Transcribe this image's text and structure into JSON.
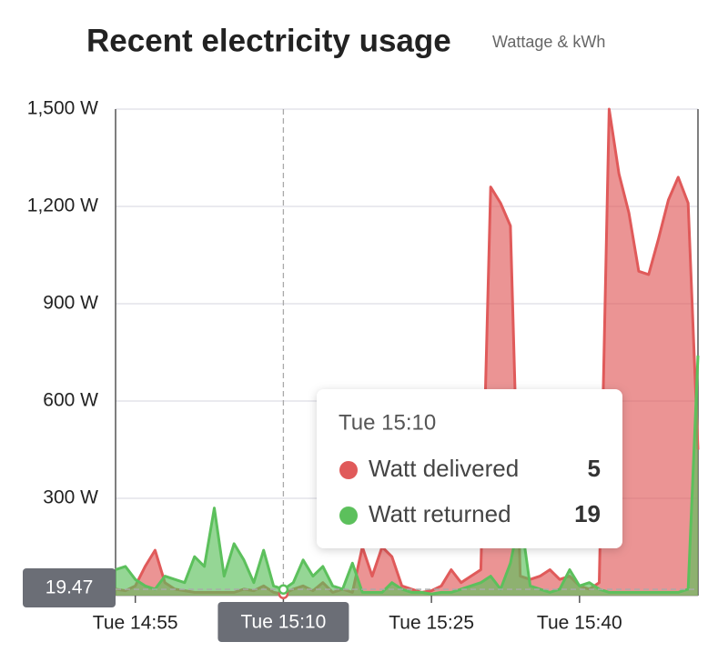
{
  "chart_data": {
    "type": "area",
    "title": "Recent electricity usage",
    "subtitle": "Wattage & kWh",
    "x": [
      "Tue 14:53",
      "Tue 14:54",
      "Tue 14:55",
      "Tue 14:56",
      "Tue 14:57",
      "Tue 14:58",
      "Tue 14:59",
      "Tue 15:00",
      "Tue 15:01",
      "Tue 15:02",
      "Tue 15:03",
      "Tue 15:04",
      "Tue 15:05",
      "Tue 15:06",
      "Tue 15:07",
      "Tue 15:08",
      "Tue 15:09",
      "Tue 15:10",
      "Tue 15:11",
      "Tue 15:12",
      "Tue 15:13",
      "Tue 15:14",
      "Tue 15:15",
      "Tue 15:16",
      "Tue 15:17",
      "Tue 15:18",
      "Tue 15:19",
      "Tue 15:20",
      "Tue 15:21",
      "Tue 15:22",
      "Tue 15:23",
      "Tue 15:24",
      "Tue 15:25",
      "Tue 15:26",
      "Tue 15:27",
      "Tue 15:28",
      "Tue 15:29",
      "Tue 15:30",
      "Tue 15:31",
      "Tue 15:32",
      "Tue 15:33",
      "Tue 15:34",
      "Tue 15:35",
      "Tue 15:36",
      "Tue 15:37",
      "Tue 15:38",
      "Tue 15:39",
      "Tue 15:40",
      "Tue 15:41",
      "Tue 15:42",
      "Tue 15:43",
      "Tue 15:44",
      "Tue 15:45",
      "Tue 15:46",
      "Tue 15:47",
      "Tue 15:48",
      "Tue 15:49",
      "Tue 15:50",
      "Tue 15:51",
      "Tue 15:52"
    ],
    "series": [
      {
        "name": "Watt delivered",
        "color": "#e05a5a",
        "values": [
          20,
          15,
          30,
          90,
          140,
          40,
          20,
          15,
          10,
          10,
          10,
          10,
          10,
          20,
          15,
          30,
          10,
          5,
          20,
          30,
          15,
          40,
          10,
          20,
          10,
          150,
          60,
          150,
          120,
          30,
          20,
          10,
          15,
          30,
          80,
          40,
          60,
          80,
          1260,
          1210,
          1140,
          60,
          50,
          60,
          80,
          50,
          60,
          30,
          20,
          40,
          1500,
          1300,
          1180,
          1000,
          990,
          1100,
          1220,
          1290,
          1210,
          450
        ]
      },
      {
        "name": "Watt returned",
        "color": "#5cc05c",
        "values": [
          80,
          90,
          50,
          30,
          20,
          60,
          50,
          40,
          120,
          90,
          270,
          60,
          160,
          110,
          40,
          140,
          30,
          19,
          40,
          110,
          60,
          90,
          30,
          20,
          100,
          10,
          10,
          10,
          40,
          20,
          10,
          10,
          5,
          10,
          10,
          20,
          30,
          40,
          60,
          20,
          100,
          250,
          30,
          20,
          10,
          20,
          80,
          30,
          40,
          20,
          10,
          10,
          10,
          10,
          10,
          10,
          10,
          10,
          20,
          740
        ]
      }
    ],
    "xlim": [
      "Tue 14:53",
      "Tue 15:52"
    ],
    "xticks": [
      "Tue 14:55",
      "Tue 15:10",
      "Tue 15:25",
      "Tue 15:40"
    ],
    "ylim": [
      0,
      1500
    ],
    "yticks": [
      {
        "value": 300,
        "label": "300 W"
      },
      {
        "value": 600,
        "label": "600 W"
      },
      {
        "value": 900,
        "label": "900 W"
      },
      {
        "value": 1200,
        "label": "1,200 W"
      },
      {
        "value": 1500,
        "label": "1,500 W"
      }
    ],
    "grid": true,
    "crosshair_y": 19.47
  }
}
